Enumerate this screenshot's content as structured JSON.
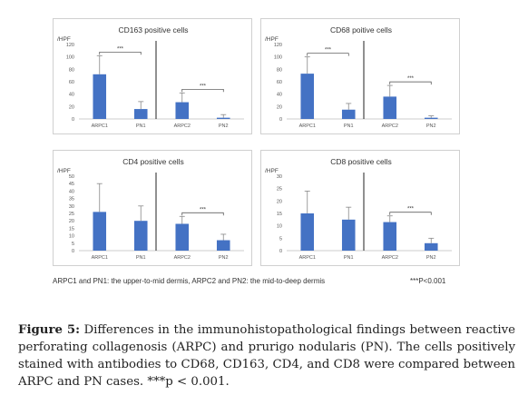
{
  "chart_data": [
    {
      "type": "bar",
      "title": "CD163 positive cells",
      "ylabel": "/HPF",
      "ylim": [
        0,
        120
      ],
      "yticks": [
        0,
        20,
        40,
        60,
        80,
        100,
        120
      ],
      "categories": [
        "ARPC1",
        "PN1",
        "ARPC2",
        "PN2"
      ],
      "values": [
        72,
        16,
        27,
        2
      ],
      "errors": [
        30,
        12,
        15,
        5
      ],
      "significance": [
        {
          "from": 0,
          "to": 1,
          "label": "***"
        },
        {
          "from": 2,
          "to": 3,
          "label": "***"
        }
      ],
      "bar_color": "#4472c4"
    },
    {
      "type": "bar",
      "title": "CD68 poitive cells",
      "ylabel": "/HPF",
      "ylim": [
        0,
        120
      ],
      "yticks": [
        0,
        20,
        40,
        60,
        80,
        100,
        120
      ],
      "categories": [
        "ARPC1",
        "PN1",
        "ARPC2",
        "PN2"
      ],
      "values": [
        73,
        15,
        36,
        2
      ],
      "errors": [
        27,
        10,
        18,
        3
      ],
      "significance": [
        {
          "from": 0,
          "to": 1,
          "label": "***"
        },
        {
          "from": 2,
          "to": 3,
          "label": "***"
        }
      ],
      "bar_color": "#4472c4"
    },
    {
      "type": "bar",
      "title": "CD4 positive cells",
      "ylabel": "/HPF",
      "ylim": [
        0,
        50
      ],
      "yticks": [
        0,
        5,
        10,
        15,
        20,
        25,
        30,
        35,
        40,
        45,
        50
      ],
      "categories": [
        "ARPC1",
        "PN1",
        "ARPC2",
        "PN2"
      ],
      "values": [
        26,
        20,
        18,
        7
      ],
      "errors": [
        19,
        10,
        5,
        4
      ],
      "significance": [
        {
          "from": 2,
          "to": 3,
          "label": "***"
        }
      ],
      "bar_color": "#4472c4"
    },
    {
      "type": "bar",
      "title": "CD8 positive cells",
      "ylabel": "/HPF",
      "ylim": [
        0,
        30
      ],
      "yticks": [
        0,
        5,
        10,
        15,
        20,
        25,
        30
      ],
      "categories": [
        "ARPC1",
        "PN1",
        "ARPC2",
        "PN2"
      ],
      "values": [
        15,
        12.5,
        11.5,
        3
      ],
      "errors": [
        9,
        5,
        2.5,
        2
      ],
      "significance": [
        {
          "from": 2,
          "to": 3,
          "label": "***"
        }
      ],
      "bar_color": "#4472c4"
    }
  ],
  "footnote_left": "ARPC1 and PN1: the upper-to-mid dermis, ARPC2 and PN2: the mid-to-deep dermis",
  "footnote_right": "***P<0.001",
  "caption": {
    "label": "Figure 5:",
    "text": " Differences in the immunohistopathological findings between reactive perforating collagenosis (ARPC) and prurigo nodularis (PN). The cells positively stained with antibodies to CD68, CD163, CD4, and CD8 were compared between ARPC and PN cases. ***p < 0.001."
  }
}
